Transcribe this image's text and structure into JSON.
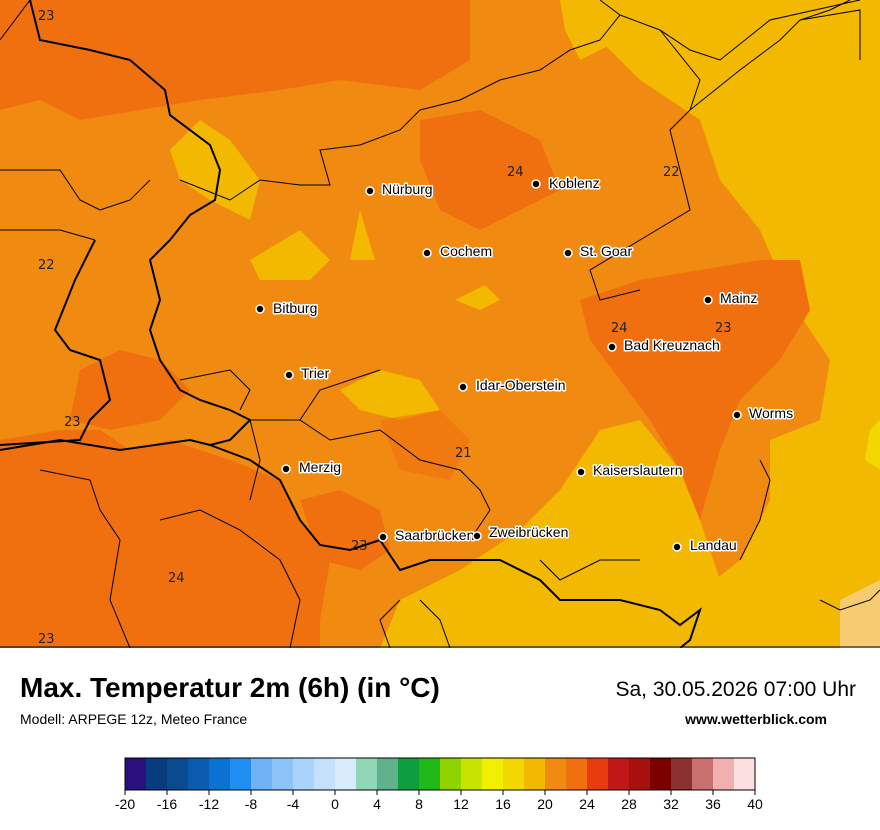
{
  "header": {
    "title": "Max. Temperatur 2m (6h) (in °C)",
    "model": "Modell: ARPEGE 12z, Meteo France",
    "datetime": "Sa, 30.05.2026 07:00 Uhr",
    "website": "www.wetterblick.com"
  },
  "cities": [
    {
      "name": "Nürburg"
    },
    {
      "name": "Koblenz"
    },
    {
      "name": "Cochem"
    },
    {
      "name": "St. Goar"
    },
    {
      "name": "Bitburg"
    },
    {
      "name": "Mainz"
    },
    {
      "name": "Bad Kreuznach"
    },
    {
      "name": "Trier"
    },
    {
      "name": "Idar-Oberstein"
    },
    {
      "name": "Worms"
    },
    {
      "name": "Merzig"
    },
    {
      "name": "Kaiserslautern"
    },
    {
      "name": "Saarbrücken"
    },
    {
      "name": "Zweibrücken"
    },
    {
      "name": "Landau"
    }
  ],
  "contour_labels": [
    "23",
    "22",
    "24",
    "22",
    "24",
    "23",
    "23",
    "21",
    "23",
    "24",
    "23"
  ],
  "legend": {
    "ticks": [
      "-20",
      "-16",
      "-12",
      "-8",
      "-4",
      "0",
      "4",
      "8",
      "12",
      "16",
      "20",
      "24",
      "28",
      "32",
      "36",
      "40"
    ],
    "colors": [
      "#2c0f7e",
      "#073c7e",
      "#0a4a8f",
      "#0b5cb0",
      "#0a73d2",
      "#1f8ef0",
      "#6fb3f6",
      "#8cc3f8",
      "#a9d3fa",
      "#c3e1fb",
      "#d8ecfc",
      "#90d6b7",
      "#5fb28c",
      "#0f9e3f",
      "#22b817",
      "#8fd400",
      "#c9e300",
      "#f0f000",
      "#f3d800",
      "#f3b800",
      "#f08a10",
      "#f07010",
      "#e83c10",
      "#c01818",
      "#a81010",
      "#7a0000",
      "#8a3030",
      "#c87070",
      "#f0b0b0",
      "#fce0e0"
    ]
  },
  "map_colors": {
    "warm_orange": "#f08a10",
    "dark_orange": "#f07010",
    "yellow": "#f3b800",
    "pale_yellow": "#f3d800",
    "sea_boundary": "#000000"
  }
}
